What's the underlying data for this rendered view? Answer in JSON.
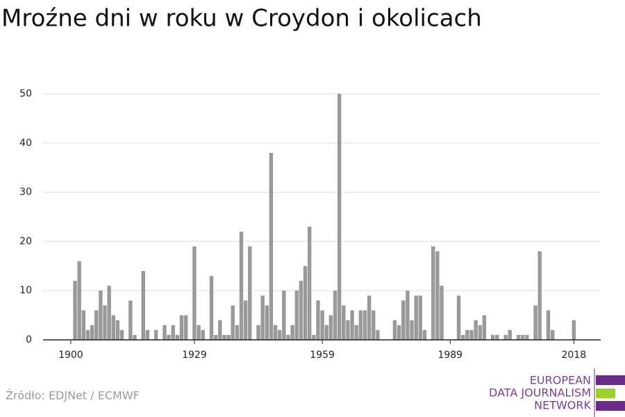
{
  "chart_data": {
    "type": "bar",
    "title": "Mroźne dni w roku w Croydon i okolicach",
    "source": "Źródło: EDJNet / ECMWF",
    "logo": [
      "EUROPEAN",
      "DATA JOURNALISM",
      "NETWORK"
    ],
    "color": "#999999",
    "x": [
      1900,
      1901,
      1902,
      1903,
      1904,
      1905,
      1906,
      1907,
      1908,
      1909,
      1910,
      1911,
      1912,
      1913,
      1914,
      1915,
      1916,
      1917,
      1918,
      1919,
      1920,
      1921,
      1922,
      1923,
      1924,
      1925,
      1926,
      1927,
      1928,
      1929,
      1930,
      1931,
      1932,
      1933,
      1934,
      1935,
      1936,
      1937,
      1938,
      1939,
      1940,
      1941,
      1942,
      1943,
      1944,
      1945,
      1946,
      1947,
      1948,
      1949,
      1950,
      1951,
      1952,
      1953,
      1954,
      1955,
      1956,
      1957,
      1958,
      1959,
      1960,
      1961,
      1962,
      1963,
      1964,
      1965,
      1966,
      1967,
      1968,
      1969,
      1970,
      1971,
      1972,
      1973,
      1974,
      1975,
      1976,
      1977,
      1978,
      1979,
      1980,
      1981,
      1982,
      1983,
      1984,
      1985,
      1986,
      1987,
      1988,
      1989,
      1990,
      1991,
      1992,
      1993,
      1994,
      1995,
      1996,
      1997,
      1998,
      1999,
      2000,
      2001,
      2002,
      2003,
      2004,
      2005,
      2006,
      2007,
      2008,
      2009,
      2010,
      2011,
      2012,
      2013,
      2014,
      2015,
      2016,
      2017,
      2018
    ],
    "values": [
      0,
      12,
      16,
      6,
      2,
      3,
      6,
      10,
      7,
      11,
      5,
      4,
      2,
      0,
      8,
      1,
      0,
      14,
      2,
      0,
      2,
      0,
      3,
      1,
      3,
      1,
      5,
      5,
      0,
      19,
      3,
      2,
      0,
      13,
      1,
      4,
      1,
      1,
      7,
      3,
      22,
      8,
      19,
      0,
      3,
      9,
      7,
      38,
      3,
      2,
      10,
      1,
      3,
      10,
      12,
      15,
      23,
      1,
      8,
      6,
      3,
      5,
      10,
      50,
      7,
      4,
      6,
      3,
      6,
      6,
      9,
      6,
      2,
      0,
      0,
      0,
      4,
      3,
      8,
      10,
      4,
      9,
      9,
      2,
      0,
      19,
      18,
      11,
      0,
      0,
      0,
      9,
      1,
      2,
      2,
      4,
      3,
      5,
      0,
      1,
      1,
      0,
      1,
      2,
      0,
      1,
      1,
      1,
      0,
      7,
      18,
      0,
      6,
      2,
      0,
      0,
      0,
      0,
      4
    ],
    "xlim": [
      1893.5,
      2024.3
    ],
    "xticks": [
      1900,
      1929,
      1959,
      1989,
      2018
    ],
    "ylim": [
      0,
      50
    ],
    "yticks": [
      0,
      10,
      20,
      30,
      40,
      50
    ],
    "grid": true
  }
}
